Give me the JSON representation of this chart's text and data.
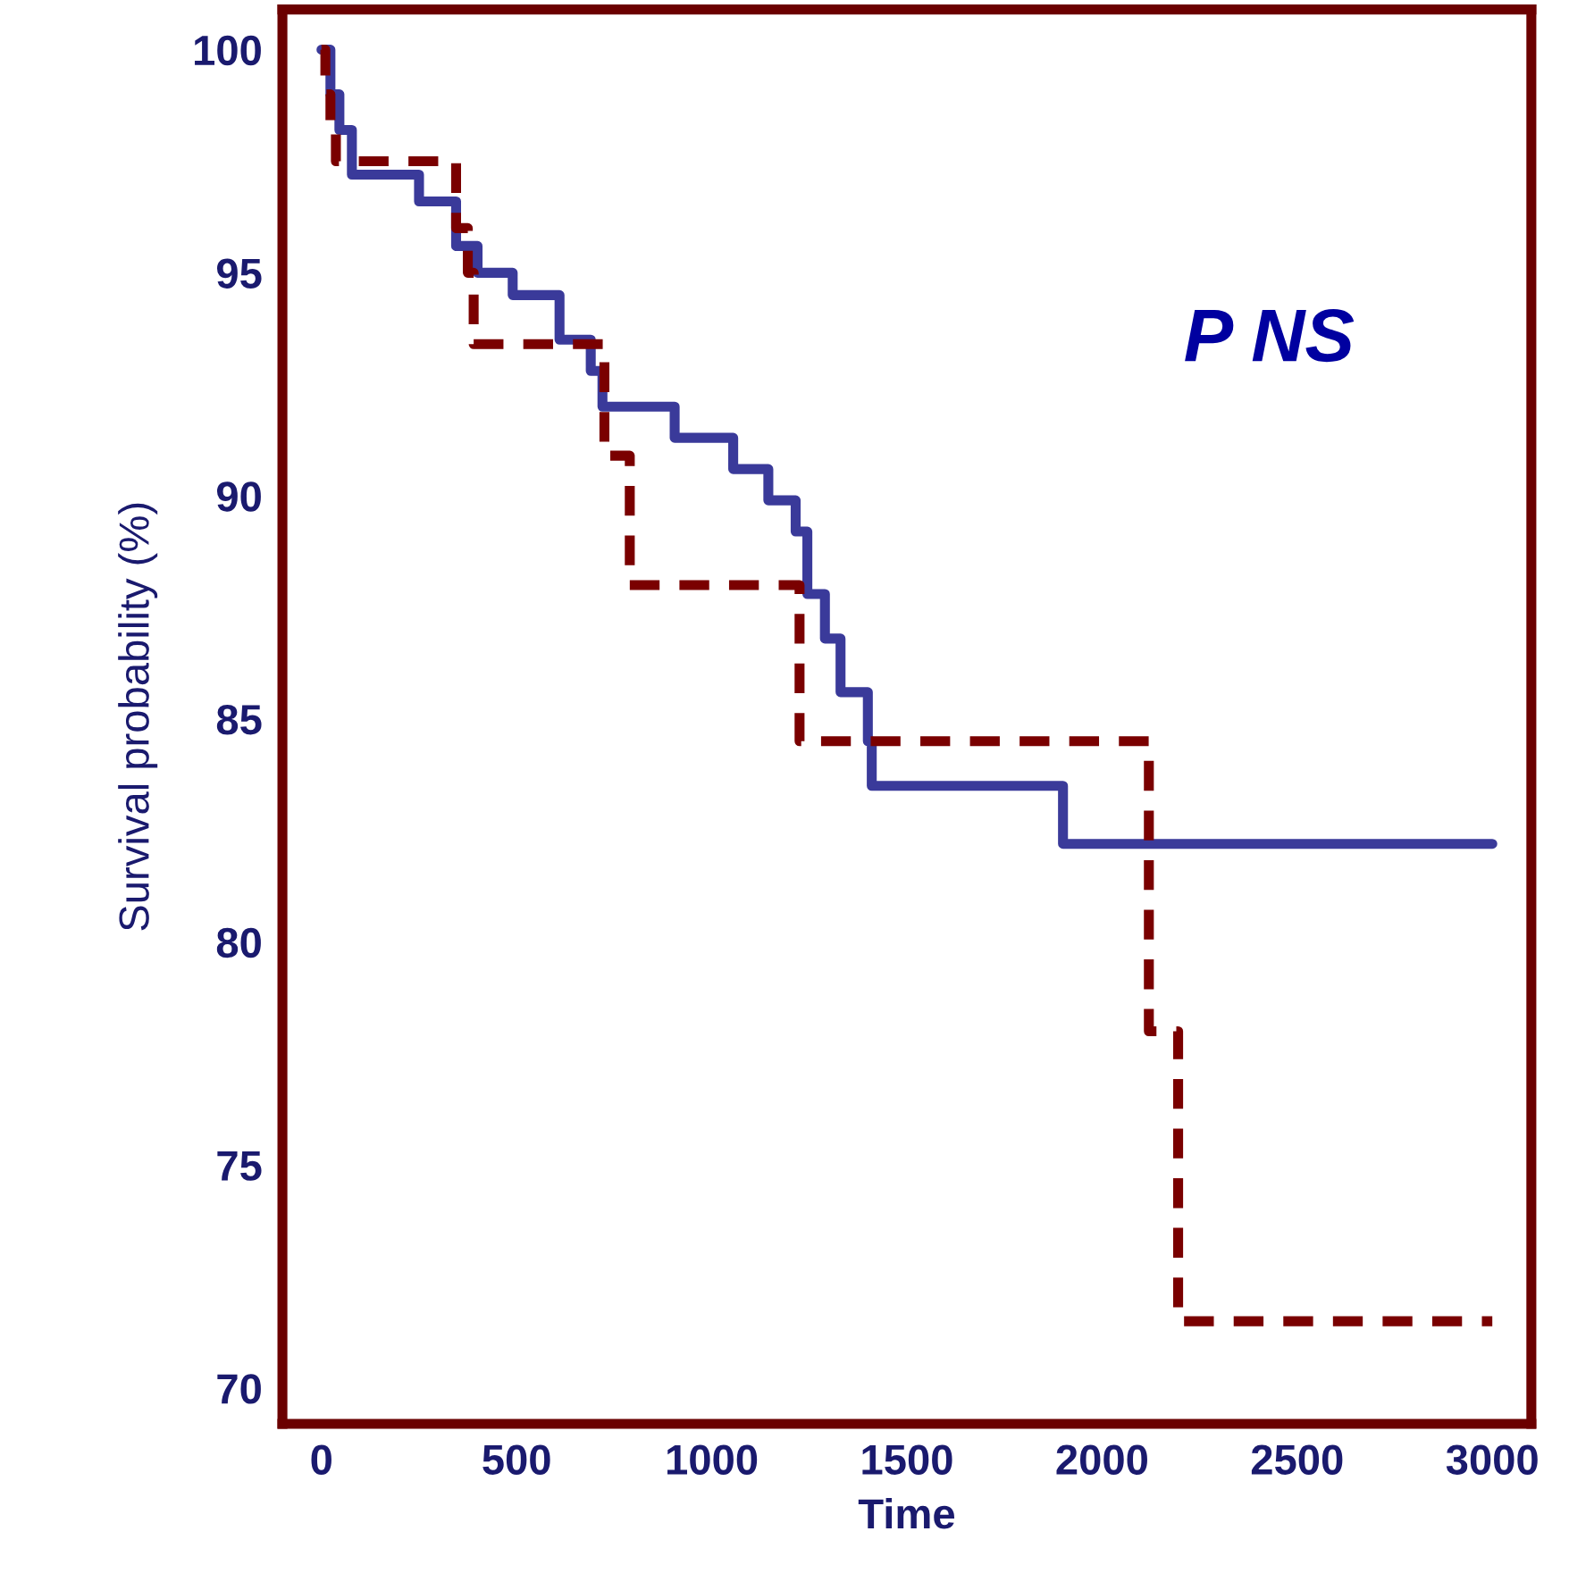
{
  "chart_data": {
    "type": "step",
    "xlabel": "Time",
    "ylabel": "Survival probability (%)",
    "xlim": [
      -100,
      3100
    ],
    "ylim": [
      69.2,
      100.9
    ],
    "xticks": [
      0,
      500,
      1000,
      1500,
      2000,
      2500,
      3000
    ],
    "yticks": [
      70,
      75,
      80,
      85,
      90,
      95,
      100
    ],
    "grid": false,
    "legend": false,
    "annotations": [
      "P NS"
    ],
    "series": [
      {
        "color": "#3a3a9a",
        "line_style": "solid",
        "x": [
          0,
          23,
          46,
          78,
          250,
          345,
          400,
          490,
          610,
          690,
          720,
          905,
          1055,
          1145,
          1215,
          1245,
          1290,
          1330,
          1400,
          1410,
          1900,
          3000
        ],
        "values": [
          100,
          99,
          98.2,
          97.2,
          96.6,
          95.6,
          95.0,
          94.5,
          93.5,
          92.8,
          92.0,
          91.3,
          90.6,
          89.9,
          89.2,
          87.8,
          86.8,
          85.6,
          84.5,
          83.5,
          82.2,
          82.2
        ]
      },
      {
        "color": "#7a0000",
        "line_style": "dashed",
        "x": [
          0,
          10,
          23,
          37,
          345,
          375,
          390,
          725,
          790,
          1225,
          2120,
          2195,
          3000
        ],
        "values": [
          100,
          99,
          98.3,
          97.5,
          96.0,
          95.0,
          93.4,
          90.9,
          88.0,
          84.5,
          78.0,
          71.5,
          71.5
        ]
      }
    ]
  }
}
